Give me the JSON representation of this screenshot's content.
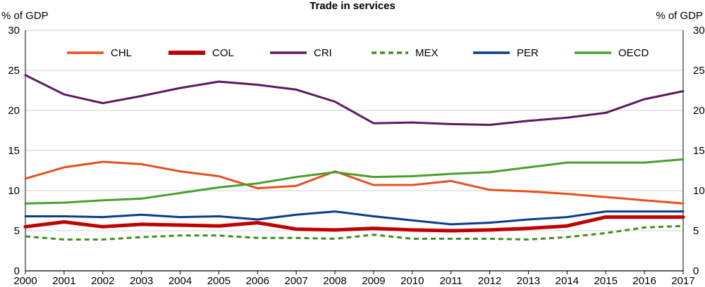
{
  "chart_data": {
    "type": "line",
    "title": "Trade in services",
    "ylabel_left": "% of GDP",
    "ylabel_right": "% of GDP",
    "ylim": [
      0,
      30
    ],
    "yticks": [
      0,
      5,
      10,
      15,
      20,
      25,
      30
    ],
    "grid": true,
    "legend_position": "top",
    "x": [
      2000,
      2001,
      2002,
      2003,
      2004,
      2005,
      2006,
      2007,
      2008,
      2009,
      2010,
      2011,
      2012,
      2013,
      2014,
      2015,
      2016,
      2017
    ],
    "x_labels": [
      "2000",
      "2001",
      "2002",
      "2003",
      "2004",
      "2005",
      "2006",
      "2007",
      "2008",
      "2009",
      "2010",
      "2011",
      "2012",
      "2013",
      "2014",
      "2015",
      "2016",
      "2017"
    ],
    "series": [
      {
        "name": "CHL",
        "color": "#e8501e",
        "style": "solid",
        "width": "normal",
        "values": [
          11.5,
          12.9,
          13.6,
          13.3,
          12.4,
          11.8,
          10.3,
          10.6,
          12.4,
          10.7,
          10.7,
          11.2,
          10.1,
          9.9,
          9.6,
          9.2,
          8.8,
          8.4
        ]
      },
      {
        "name": "COL",
        "color": "#c00000",
        "style": "solid",
        "width": "thick",
        "values": [
          5.5,
          6.1,
          5.5,
          5.8,
          5.7,
          5.6,
          6.0,
          5.2,
          5.1,
          5.3,
          5.1,
          5.0,
          5.1,
          5.3,
          5.6,
          6.7,
          6.7,
          6.7
        ]
      },
      {
        "name": "CRI",
        "color": "#5b1a5e",
        "style": "solid",
        "width": "normal",
        "values": [
          24.4,
          22.0,
          20.9,
          21.8,
          22.8,
          23.6,
          23.2,
          22.6,
          21.1,
          18.4,
          18.5,
          18.3,
          18.2,
          18.7,
          19.1,
          19.7,
          21.4,
          22.4
        ]
      },
      {
        "name": "MEX",
        "color": "#3f8f1f",
        "style": "dashed",
        "width": "normal",
        "values": [
          4.3,
          3.9,
          3.9,
          4.2,
          4.4,
          4.4,
          4.1,
          4.1,
          4.0,
          4.5,
          4.0,
          4.0,
          4.0,
          3.9,
          4.2,
          4.7,
          5.4,
          5.6
        ]
      },
      {
        "name": "PER",
        "color": "#0b3c8c",
        "style": "solid",
        "width": "normal",
        "values": [
          6.8,
          6.8,
          6.7,
          7.0,
          6.7,
          6.8,
          6.4,
          7.0,
          7.4,
          6.8,
          6.3,
          5.8,
          6.0,
          6.4,
          6.7,
          7.4,
          7.4,
          7.4
        ]
      },
      {
        "name": "OECD",
        "color": "#4aa02c",
        "style": "solid",
        "width": "normal",
        "values": [
          8.4,
          8.5,
          8.8,
          9.0,
          9.7,
          10.4,
          10.9,
          11.7,
          12.3,
          11.7,
          11.8,
          12.1,
          12.3,
          12.9,
          13.5,
          13.5,
          13.5,
          13.9
        ]
      }
    ]
  }
}
